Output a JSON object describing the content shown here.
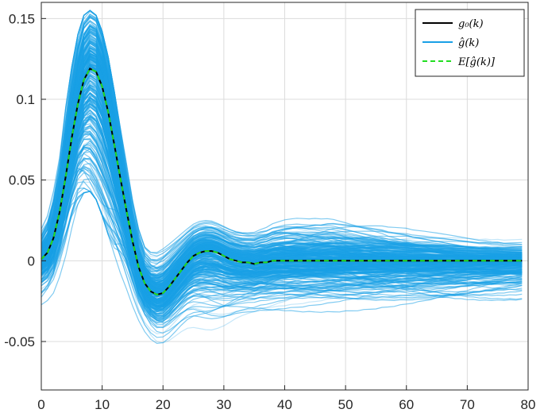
{
  "chart_data": {
    "type": "line",
    "title": "",
    "xlabel": "",
    "ylabel": "",
    "xlim": [
      0,
      80
    ],
    "ylim": [
      -0.08,
      0.16
    ],
    "grid": true,
    "legend_position": "top-right",
    "x_ticks": [
      0,
      10,
      20,
      30,
      40,
      50,
      60,
      70,
      80
    ],
    "x_tick_labels": [
      "0",
      "10",
      "20",
      "30",
      "40",
      "50",
      "60",
      "70",
      "80"
    ],
    "y_ticks": [
      -0.05,
      0,
      0.05,
      0.1,
      0.15
    ],
    "y_tick_labels": [
      "-0.05",
      "0",
      "0.05",
      "0.1",
      "0.15"
    ],
    "x": [
      0,
      1,
      2,
      3,
      4,
      5,
      6,
      7,
      8,
      9,
      10,
      11,
      12,
      13,
      14,
      15,
      16,
      17,
      18,
      19,
      20,
      21,
      22,
      23,
      24,
      25,
      26,
      27,
      28,
      29,
      30,
      31,
      32,
      33,
      34,
      35,
      36,
      37,
      38,
      39,
      40,
      41,
      42,
      43,
      44,
      45,
      46,
      47,
      48,
      49,
      50,
      51,
      52,
      53,
      54,
      55,
      56,
      57,
      58,
      59,
      60,
      61,
      62,
      63,
      64,
      65,
      66,
      67,
      68,
      69,
      70,
      71,
      72,
      73,
      74,
      75,
      76,
      77,
      78,
      79
    ],
    "series": [
      {
        "name": "g_0(k)",
        "legend_label": "g₀(k)",
        "color": "#000000",
        "style": "solid",
        "values": [
          0.001,
          0.005,
          0.014,
          0.03,
          0.052,
          0.076,
          0.097,
          0.112,
          0.119,
          0.117,
          0.108,
          0.092,
          0.072,
          0.051,
          0.031,
          0.012,
          -0.004,
          -0.014,
          -0.019,
          -0.021,
          -0.02,
          -0.016,
          -0.011,
          -0.006,
          -0.001,
          0.003,
          0.005,
          0.006,
          0.006,
          0.005,
          0.003,
          0.001,
          0.0,
          -0.001,
          -0.001,
          -0.002,
          -0.001,
          -0.001,
          0.0,
          0.0,
          0.0,
          0.0,
          0.0,
          0.0,
          0.0,
          0.0,
          0.0,
          0.0,
          0.0,
          0.0,
          0.0,
          0.0,
          0.0,
          0.0,
          0.0,
          0.0,
          0.0,
          0.0,
          0.0,
          0.0,
          0.0,
          0.0,
          0.0,
          0.0,
          0.0,
          0.0,
          0.0,
          0.0,
          0.0,
          0.0,
          0.0,
          0.0,
          0.0,
          0.0,
          0.0,
          0.0,
          0.0,
          0.0,
          0.0,
          0.0
        ]
      },
      {
        "name": "ĝ(k)",
        "legend_label": "ĝ(k)",
        "color": "#19a0e6",
        "style": "solid",
        "note_count": 0,
        "envelope_upper": [
          0.022,
          0.03,
          0.045,
          0.065,
          0.095,
          0.12,
          0.14,
          0.152,
          0.155,
          0.152,
          0.142,
          0.126,
          0.105,
          0.082,
          0.06,
          0.04,
          0.024,
          0.014,
          0.012,
          0.013,
          0.016,
          0.019,
          0.022,
          0.025,
          0.028,
          0.031,
          0.033,
          0.034,
          0.034,
          0.033,
          0.032,
          0.031,
          0.03,
          0.03,
          0.03,
          0.031,
          0.033,
          0.035,
          0.038,
          0.04,
          0.042,
          0.043,
          0.044,
          0.044,
          0.044,
          0.045,
          0.045,
          0.046,
          0.046,
          0.045,
          0.044,
          0.043,
          0.042,
          0.041,
          0.04,
          0.039,
          0.038,
          0.036,
          0.035,
          0.034,
          0.033,
          0.031,
          0.03,
          0.029,
          0.028,
          0.027,
          0.026,
          0.025,
          0.024,
          0.023,
          0.022,
          0.021,
          0.02,
          0.02,
          0.019,
          0.019,
          0.018,
          0.018,
          0.018,
          0.018
        ],
        "envelope_lower": [
          -0.028,
          -0.025,
          -0.02,
          -0.01,
          0.003,
          0.02,
          0.035,
          0.042,
          0.043,
          0.038,
          0.028,
          0.016,
          0.004,
          -0.008,
          -0.02,
          -0.032,
          -0.042,
          -0.05,
          -0.056,
          -0.06,
          -0.061,
          -0.06,
          -0.058,
          -0.056,
          -0.055,
          -0.056,
          -0.058,
          -0.06,
          -0.061,
          -0.06,
          -0.058,
          -0.055,
          -0.052,
          -0.05,
          -0.049,
          -0.048,
          -0.047,
          -0.047,
          -0.047,
          -0.046,
          -0.046,
          -0.045,
          -0.045,
          -0.045,
          -0.044,
          -0.044,
          -0.044,
          -0.043,
          -0.043,
          -0.043,
          -0.042,
          -0.042,
          -0.042,
          -0.041,
          -0.041,
          -0.041,
          -0.04,
          -0.04,
          -0.04,
          -0.039,
          -0.039,
          -0.039,
          -0.038,
          -0.038,
          -0.038,
          -0.037,
          -0.037,
          -0.036,
          -0.036,
          -0.035,
          -0.035,
          -0.034,
          -0.034,
          -0.033,
          -0.033,
          -0.032,
          -0.032,
          -0.031,
          -0.031,
          -0.03
        ]
      },
      {
        "name": "E[ĝ(k)]",
        "legend_label": "E[ĝ(k)]",
        "color": "#22dd22",
        "style": "dashed",
        "values": [
          0.001,
          0.005,
          0.014,
          0.03,
          0.052,
          0.076,
          0.097,
          0.112,
          0.119,
          0.117,
          0.108,
          0.092,
          0.072,
          0.051,
          0.031,
          0.012,
          -0.004,
          -0.014,
          -0.019,
          -0.021,
          -0.02,
          -0.016,
          -0.011,
          -0.006,
          -0.001,
          0.003,
          0.005,
          0.006,
          0.006,
          0.005,
          0.003,
          0.001,
          0.0,
          -0.001,
          -0.001,
          -0.002,
          -0.001,
          -0.001,
          0.0,
          0.0,
          0.0,
          0.0,
          0.0,
          0.0,
          0.0,
          0.0,
          0.0,
          0.0,
          0.0,
          0.0,
          0.0,
          0.0,
          0.0,
          0.0,
          0.0,
          0.0,
          0.0,
          0.0,
          0.0,
          0.0,
          0.0,
          0.0,
          0.0,
          0.0,
          0.0,
          0.0,
          0.0,
          0.0,
          0.0,
          0.0,
          0.0,
          0.0,
          0.0,
          0.0,
          0.0,
          0.0,
          0.0,
          0.0,
          0.0,
          0.0
        ]
      }
    ]
  }
}
